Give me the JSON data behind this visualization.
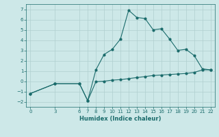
{
  "xlabel": "Humidex (Indice chaleur)",
  "curve1_x": [
    0,
    3,
    6,
    7,
    8,
    9,
    10,
    11,
    12,
    13,
    14,
    15,
    16,
    17,
    18,
    19,
    20,
    21,
    22
  ],
  "curve1_y": [
    -1.2,
    -0.25,
    -0.25,
    -1.9,
    -0.05,
    0.0,
    0.1,
    0.15,
    0.25,
    0.35,
    0.45,
    0.55,
    0.6,
    0.65,
    0.7,
    0.75,
    0.85,
    1.1,
    1.1
  ],
  "curve2_x": [
    0,
    3,
    6,
    7,
    8,
    9,
    10,
    11,
    12,
    13,
    14,
    15,
    16,
    17,
    18,
    19,
    20,
    21,
    22
  ],
  "curve2_y": [
    -1.2,
    -0.25,
    -0.25,
    -1.9,
    1.1,
    2.6,
    3.1,
    4.1,
    6.9,
    6.2,
    6.1,
    5.0,
    5.1,
    4.1,
    3.0,
    3.1,
    2.5,
    1.2,
    1.1
  ],
  "line_color": "#1a6b6b",
  "bg_color": "#cde8e8",
  "grid_color": "#b0cfcf",
  "ylim": [
    -2.5,
    7.5
  ],
  "xlim": [
    -0.5,
    22.5
  ],
  "yticks": [
    -2,
    -1,
    0,
    1,
    2,
    3,
    4,
    5,
    6,
    7
  ],
  "xticks": [
    0,
    3,
    6,
    7,
    8,
    9,
    10,
    11,
    12,
    13,
    14,
    15,
    16,
    17,
    18,
    19,
    20,
    21,
    22
  ],
  "tick_fontsize": 5,
  "xlabel_fontsize": 6
}
